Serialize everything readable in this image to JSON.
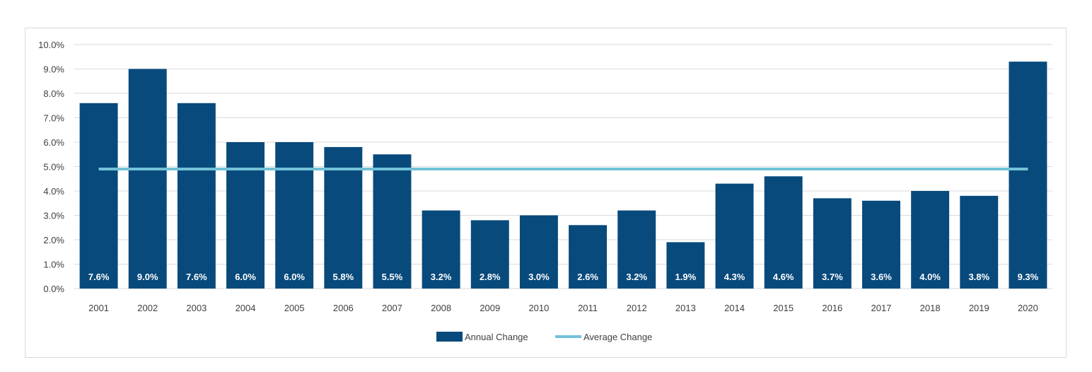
{
  "chart_data": {
    "type": "bar",
    "title": "",
    "xlabel": "",
    "ylabel": "",
    "categories": [
      "2001",
      "2002",
      "2003",
      "2004",
      "2005",
      "2006",
      "2007",
      "2008",
      "2009",
      "2010",
      "2011",
      "2012",
      "2013",
      "2014",
      "2015",
      "2016",
      "2017",
      "2018",
      "2019",
      "2020"
    ],
    "series": [
      {
        "name": "Annual Change",
        "type": "bar",
        "values": [
          7.6,
          9.0,
          7.6,
          6.0,
          6.0,
          5.8,
          5.5,
          3.2,
          2.8,
          3.0,
          2.6,
          3.2,
          1.9,
          4.3,
          4.6,
          3.7,
          3.6,
          4.0,
          3.8,
          9.3
        ],
        "labels": [
          "7.6%",
          "9.0%",
          "7.6%",
          "6.0%",
          "6.0%",
          "5.8%",
          "5.5%",
          "3.2%",
          "2.8%",
          "3.0%",
          "2.6%",
          "3.2%",
          "1.9%",
          "4.3%",
          "4.6%",
          "3.7%",
          "3.6%",
          "4.0%",
          "3.8%",
          "9.3%"
        ]
      },
      {
        "name": "Average Change",
        "type": "line",
        "value": 4.9
      }
    ],
    "ylim": [
      0,
      10
    ],
    "yticks": [
      0,
      1,
      2,
      3,
      4,
      5,
      6,
      7,
      8,
      9,
      10
    ],
    "ytick_labels": [
      "0.0%",
      "1.0%",
      "2.0%",
      "3.0%",
      "4.0%",
      "5.0%",
      "6.0%",
      "7.0%",
      "8.0%",
      "9.0%",
      "10.0%"
    ],
    "grid": true,
    "legend_position": "bottom-center"
  },
  "colors": {
    "bar": "#084a7c",
    "average_line": "#72c2d6",
    "grid": "#d9d9d9",
    "axis_text": "#404040"
  }
}
